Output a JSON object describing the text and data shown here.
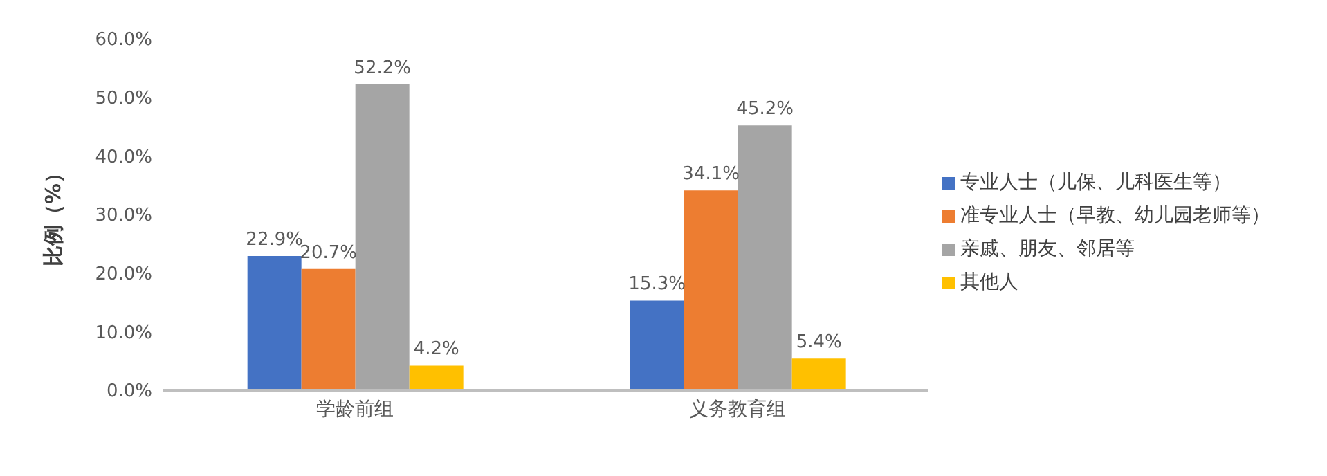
{
  "chart_data": {
    "type": "bar",
    "ylabel": "比例（%）",
    "categories": [
      "学龄前组",
      "义务教育组"
    ],
    "series": [
      {
        "name": "专业人士（儿保、儿科医生等）",
        "color": "#4472c4",
        "values": [
          22.9,
          15.3
        ],
        "value_labels": [
          "22.9%",
          "15.3%"
        ]
      },
      {
        "name": "准专业人士（早教、幼儿园老师等）",
        "color": "#ed7d31",
        "values": [
          20.7,
          34.1
        ],
        "value_labels": [
          "20.7%",
          "34.1%"
        ]
      },
      {
        "name": "亲戚、朋友、邻居等",
        "color": "#a5a5a5",
        "values": [
          52.2,
          45.2
        ],
        "value_labels": [
          "52.2%",
          "45.2%"
        ]
      },
      {
        "name": "其他人",
        "color": "#ffc000",
        "values": [
          4.2,
          5.4
        ],
        "value_labels": [
          "4.2%",
          "5.4%"
        ]
      }
    ],
    "ylim": [
      0,
      60
    ],
    "yticks": [
      {
        "value": 0,
        "label": "0.0%"
      },
      {
        "value": 10,
        "label": "10.0%"
      },
      {
        "value": 20,
        "label": "20.0%"
      },
      {
        "value": 30,
        "label": "30.0%"
      },
      {
        "value": 40,
        "label": "40.0%"
      },
      {
        "value": 50,
        "label": "50.0%"
      },
      {
        "value": 60,
        "label": "60.0%"
      }
    ],
    "grid": false,
    "legend": "right"
  }
}
